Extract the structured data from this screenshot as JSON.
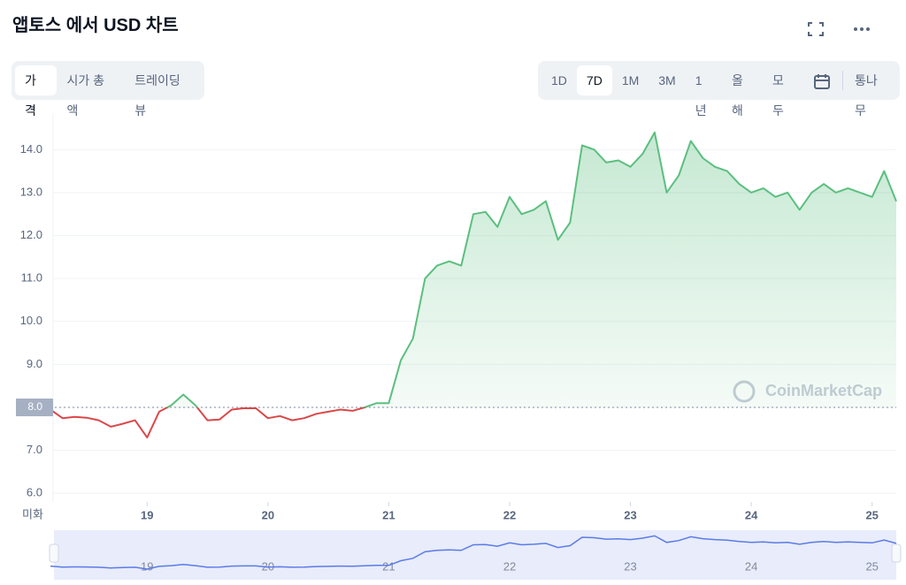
{
  "controls": {
    "tabs": [
      "가격",
      "시가 총액",
      "트레이딩뷰"
    ],
    "active_tab": 0,
    "ranges": [
      "1D",
      "7D",
      "1M",
      "3M",
      "1년",
      "올해",
      "모두"
    ],
    "active_range": 1,
    "log_label": "통나무"
  },
  "chart_data": {
    "type": "line",
    "title": "앱토스 에서 USD 차트",
    "currency_label": "미화",
    "watermark": "CoinMarketCap",
    "x": [
      18.2,
      18.3,
      18.4,
      18.5,
      18.6,
      18.7,
      18.8,
      18.9,
      19.0,
      19.1,
      19.2,
      19.3,
      19.4,
      19.5,
      19.6,
      19.7,
      19.8,
      19.9,
      20.0,
      20.1,
      20.2,
      20.3,
      20.4,
      20.5,
      20.6,
      20.7,
      20.8,
      20.9,
      21.0,
      21.1,
      21.2,
      21.3,
      21.4,
      21.5,
      21.6,
      21.7,
      21.8,
      21.9,
      22.0,
      22.1,
      22.2,
      22.3,
      22.4,
      22.5,
      22.6,
      22.7,
      22.8,
      22.9,
      23.0,
      23.1,
      23.2,
      23.3,
      23.4,
      23.5,
      23.6,
      23.7,
      23.8,
      23.9,
      24.0,
      24.1,
      24.2,
      24.3,
      24.4,
      24.5,
      24.6,
      24.7,
      24.8,
      24.9,
      25.0,
      25.1,
      25.2
    ],
    "series": [
      {
        "name": "Price",
        "color": "#5bbf7f",
        "color_down": "#d9484a",
        "values": [
          7.95,
          7.75,
          7.78,
          7.76,
          7.7,
          7.55,
          7.62,
          7.7,
          7.3,
          7.9,
          8.05,
          8.3,
          8.05,
          7.7,
          7.72,
          7.95,
          7.98,
          7.98,
          7.75,
          7.8,
          7.7,
          7.75,
          7.85,
          7.9,
          7.95,
          7.92,
          8.0,
          8.1,
          8.1,
          9.1,
          9.6,
          11.0,
          11.3,
          11.4,
          11.3,
          12.5,
          12.55,
          12.2,
          12.9,
          12.5,
          12.6,
          12.8,
          11.9,
          12.3,
          14.1,
          14.0,
          13.7,
          13.75,
          13.6,
          13.9,
          14.4,
          13.0,
          13.4,
          14.2,
          13.8,
          13.6,
          13.5,
          13.2,
          13.0,
          13.1,
          12.9,
          13.0,
          12.6,
          13.0,
          13.2,
          13.0,
          13.1,
          13.0,
          12.9,
          13.5,
          12.8
        ]
      }
    ],
    "baseline": {
      "value": 8,
      "label": "8.0"
    },
    "xlim": [
      18.2,
      25.2
    ],
    "ylim": [
      5.8,
      14.85
    ],
    "xticks": [
      19,
      20,
      21,
      22,
      23,
      24,
      25
    ],
    "yticks": [
      {
        "value": 6,
        "label": "6.0"
      },
      {
        "value": 7,
        "label": "7.0"
      },
      {
        "value": 8,
        "label": "8.0"
      },
      {
        "value": 9,
        "label": "9.0"
      },
      {
        "value": 10,
        "label": "10.0"
      },
      {
        "value": 11,
        "label": "11.0"
      },
      {
        "value": 12,
        "label": "12.0"
      },
      {
        "value": 13,
        "label": "13.0"
      },
      {
        "value": 14,
        "label": "14.0"
      }
    ],
    "grid": true,
    "navigator_color": "#5b7be6"
  }
}
